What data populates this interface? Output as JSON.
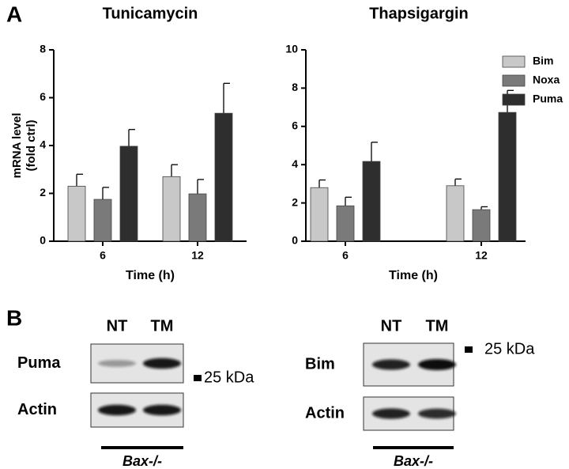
{
  "panel_a_label": "A",
  "panel_b_label": "B",
  "chart_data": [
    {
      "type": "bar",
      "title": "Tunicamycin",
      "y_label": [
        "mRNA level",
        "(fold ctrl)"
      ],
      "x_label": "Time (h)",
      "categories": [
        "6",
        "12"
      ],
      "series": [
        {
          "color": "#c8c8c8",
          "values": [
            2.3,
            2.7
          ],
          "errors": [
            0.5,
            0.5
          ]
        },
        {
          "color": "#7a7a7a",
          "values": [
            1.75,
            1.98
          ],
          "errors": [
            0.5,
            0.6
          ]
        },
        {
          "color": "#2e2e2e",
          "values": [
            3.97,
            5.35
          ],
          "errors": [
            0.7,
            1.25
          ]
        }
      ],
      "ylim": [
        0,
        8
      ],
      "yticks": [
        0,
        2,
        4,
        6,
        8
      ]
    },
    {
      "type": "bar",
      "title": "Thapsigargin",
      "x_label": "Time (h)",
      "categories": [
        "6",
        "12"
      ],
      "series": [
        {
          "name": "Bim",
          "color": "#c8c8c8",
          "values": [
            2.8,
            2.9
          ],
          "errors": [
            0.4,
            0.35
          ]
        },
        {
          "name": "Noxa",
          "color": "#7a7a7a",
          "values": [
            1.85,
            1.65
          ],
          "errors": [
            0.45,
            0.15
          ]
        },
        {
          "name": "Puma",
          "color": "#2e2e2e",
          "values": [
            4.17,
            6.73
          ],
          "errors": [
            1.0,
            1.15
          ]
        }
      ],
      "ylim": [
        0,
        10
      ],
      "yticks": [
        0,
        2,
        4,
        6,
        8,
        10
      ],
      "legend": "right"
    }
  ],
  "blots": [
    {
      "lanes": [
        "NT",
        "TM"
      ],
      "rows": [
        "Puma",
        "Actin"
      ],
      "marker": "25 kDa",
      "genotype": "Bax-/-"
    },
    {
      "lanes": [
        "NT",
        "TM"
      ],
      "rows": [
        "Bim",
        "Actin"
      ],
      "marker": "25 kDa",
      "genotype": "Bax-/-"
    }
  ]
}
